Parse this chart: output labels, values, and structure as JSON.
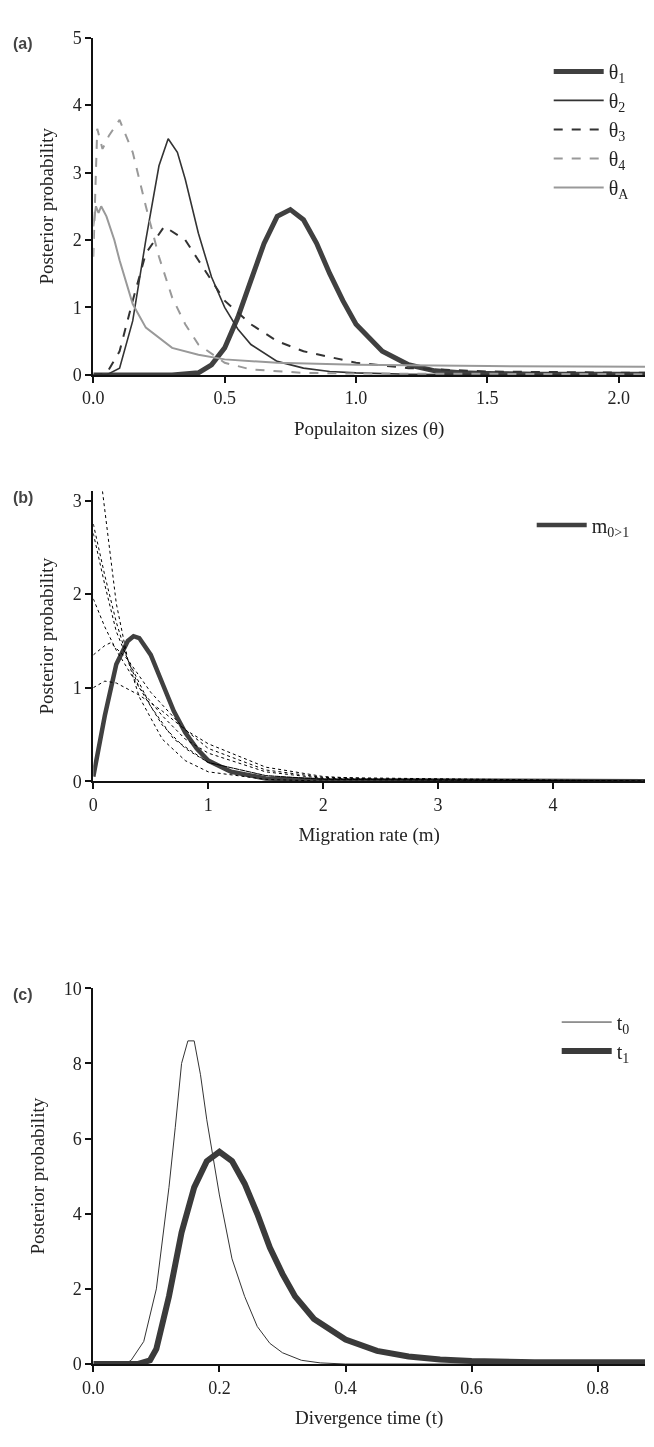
{
  "chart_data": [
    {
      "type": "line",
      "title": "(a)",
      "xlabel": "Populaiton sizes (θ)",
      "ylabel": "Posterior probability",
      "xlim": [
        0,
        2.1
      ],
      "ylim": [
        0,
        5
      ],
      "xticks": [
        {
          "value": 0,
          "label": "0.0"
        },
        0.5,
        {
          "value": 1,
          "label": "1.0"
        },
        1.5,
        {
          "value": 2,
          "label": "2.0"
        }
      ],
      "yticks": [
        0,
        1,
        2,
        3,
        4,
        5
      ],
      "legend": "top right",
      "series": [
        {
          "name": "θ$_{1}$",
          "color": "#404040",
          "line_style": "solid",
          "x": [
            0,
            0.3,
            0.4,
            0.45,
            0.5,
            0.55,
            0.6,
            0.65,
            0.7,
            0.75,
            0.8,
            0.85,
            0.9,
            0.95,
            1.0,
            1.1,
            1.2,
            1.3,
            1.4,
            1.5,
            1.7,
            2.1
          ],
          "values": [
            0,
            0,
            0.03,
            0.15,
            0.4,
            0.85,
            1.4,
            1.95,
            2.35,
            2.45,
            2.3,
            1.95,
            1.5,
            1.1,
            0.75,
            0.35,
            0.15,
            0.06,
            0.03,
            0.02,
            0.01,
            0.01
          ]
        },
        {
          "name": "θ$_{2}$",
          "color": "#333333",
          "line_style": "solid",
          "x": [
            0,
            0.05,
            0.1,
            0.15,
            0.2,
            0.25,
            0.285,
            0.32,
            0.35,
            0.4,
            0.45,
            0.5,
            0.55,
            0.6,
            0.7,
            0.8,
            0.9,
            1.0,
            1.2,
            1.5,
            2.1
          ],
          "values": [
            0,
            0,
            0.1,
            0.8,
            2.0,
            3.1,
            3.5,
            3.3,
            2.9,
            2.1,
            1.45,
            1.0,
            0.68,
            0.45,
            0.2,
            0.1,
            0.05,
            0.03,
            0.01,
            0,
            0
          ]
        },
        {
          "name": "θ$_{3}$",
          "color": "#333333",
          "line_style": "dashed",
          "x": [
            0,
            0.05,
            0.1,
            0.15,
            0.2,
            0.27,
            0.35,
            0.4,
            0.5,
            0.6,
            0.7,
            0.8,
            1.0,
            1.2,
            1.5,
            2.1
          ],
          "values": [
            0,
            0.02,
            0.35,
            1.1,
            1.8,
            2.2,
            2.0,
            1.7,
            1.1,
            0.75,
            0.5,
            0.35,
            0.18,
            0.1,
            0.05,
            0.03
          ]
        },
        {
          "name": "θ$_{4}$",
          "color": "#999999",
          "line_style": "dashed",
          "x": [
            0,
            0.015,
            0.035,
            0.06,
            0.1,
            0.15,
            0.2,
            0.25,
            0.3,
            0.35,
            0.4,
            0.5,
            0.6,
            0.8,
            1.0,
            2.1
          ],
          "values": [
            1.75,
            3.65,
            3.35,
            3.55,
            3.78,
            3.3,
            2.5,
            1.75,
            1.15,
            0.75,
            0.45,
            0.18,
            0.08,
            0.03,
            0.02,
            0.01
          ]
        },
        {
          "name": "θ$_{A}$",
          "color": "#999999",
          "line_style": "solid",
          "x": [
            0,
            0.01,
            0.02,
            0.03,
            0.05,
            0.08,
            0.1,
            0.15,
            0.2,
            0.3,
            0.4,
            0.5,
            0.7,
            1.0,
            1.5,
            2.1
          ],
          "values": [
            2.2,
            2.5,
            2.4,
            2.5,
            2.35,
            2.0,
            1.7,
            1.05,
            0.7,
            0.4,
            0.3,
            0.23,
            0.18,
            0.15,
            0.13,
            0.12
          ]
        }
      ]
    },
    {
      "type": "line",
      "title": "(b)",
      "xlabel": "Migration rate (m)",
      "ylabel": "Posterior probability",
      "xlim": [
        0,
        4.8
      ],
      "ylim": [
        0,
        3.1
      ],
      "xticks": [
        0,
        1,
        2,
        3,
        4
      ],
      "yticks": [
        0,
        1,
        2,
        3
      ],
      "legend": "top right",
      "series": [
        {
          "name": "m$_{0>1}$",
          "color": "#404040",
          "line_style": "solid",
          "x": [
            0,
            0.1,
            0.2,
            0.3,
            0.35,
            0.4,
            0.5,
            0.6,
            0.7,
            0.8,
            0.9,
            1.0,
            1.2,
            1.5,
            2,
            4.8
          ],
          "values": [
            0.05,
            0.7,
            1.25,
            1.5,
            1.55,
            1.53,
            1.35,
            1.05,
            0.75,
            0.52,
            0.35,
            0.22,
            0.1,
            0.03,
            0.01,
            0
          ]
        },
        {
          "color": "#000000",
          "line_style": "dotted",
          "x": [
            0.08,
            0.2,
            0.3,
            0.4,
            0.6,
            0.8,
            1,
            1.5,
            2,
            4.8
          ],
          "values": [
            3.1,
            1.9,
            1.3,
            0.9,
            0.45,
            0.22,
            0.1,
            0.02,
            0,
            0
          ]
        },
        {
          "color": "#000000",
          "line_style": "dotted",
          "x": [
            0,
            0.1,
            0.2,
            0.3,
            0.5,
            0.7,
            1,
            1.5,
            2,
            4.8
          ],
          "values": [
            2.75,
            2.2,
            1.7,
            1.3,
            0.8,
            0.45,
            0.2,
            0.06,
            0.02,
            0
          ]
        },
        {
          "color": "#000000",
          "line_style": "dotted",
          "x": [
            0,
            0.1,
            0.2,
            0.4,
            0.6,
            0.8,
            1,
            1.5,
            2,
            4.8
          ],
          "values": [
            2.65,
            2.1,
            1.6,
            1.0,
            0.6,
            0.35,
            0.2,
            0.06,
            0.02,
            0
          ]
        },
        {
          "color": "#000000",
          "line_style": "dotted",
          "x": [
            0,
            0.1,
            0.2,
            0.4,
            0.6,
            0.8,
            1,
            1.5,
            2,
            4.8
          ],
          "values": [
            1.95,
            1.65,
            1.4,
            1.0,
            0.7,
            0.45,
            0.3,
            0.1,
            0.03,
            0
          ]
        },
        {
          "color": "#000000",
          "line_style": "dotted",
          "x": [
            0,
            0.1,
            0.15,
            0.3,
            0.5,
            0.8,
            1,
            1.5,
            2,
            4.8
          ],
          "values": [
            1.35,
            1.45,
            1.48,
            1.3,
            0.95,
            0.55,
            0.35,
            0.12,
            0.04,
            0
          ]
        },
        {
          "color": "#000000",
          "line_style": "dotted",
          "x": [
            0,
            0.1,
            0.2,
            0.4,
            0.6,
            0.8,
            1,
            1.5,
            2,
            2.5,
            4.8
          ],
          "values": [
            1.0,
            1.07,
            1.05,
            0.92,
            0.75,
            0.55,
            0.4,
            0.15,
            0.05,
            0.02,
            0
          ]
        }
      ]
    },
    {
      "type": "line",
      "title": "(c)",
      "xlabel": "Divergence time (t)",
      "ylabel": "Posterior probability",
      "xlim": [
        0,
        0.875
      ],
      "ylim": [
        0,
        10
      ],
      "xticks": [
        {
          "value": 0,
          "label": "0.0"
        },
        0.2,
        0.4,
        0.6,
        0.8
      ],
      "yticks": [
        0,
        2,
        4,
        6,
        8,
        10
      ],
      "legend": "top right",
      "series": [
        {
          "name": "t$_{0}$",
          "color": "#333333",
          "line_style": "solid",
          "x": [
            0,
            0.05,
            0.06,
            0.08,
            0.1,
            0.12,
            0.13,
            0.14,
            0.15,
            0.16,
            0.17,
            0.18,
            0.2,
            0.22,
            0.24,
            0.26,
            0.28,
            0.3,
            0.33,
            0.36,
            0.4,
            0.875
          ],
          "values": [
            0,
            0,
            0.1,
            0.6,
            2.0,
            4.7,
            6.3,
            8.0,
            8.6,
            8.6,
            7.7,
            6.5,
            4.5,
            2.8,
            1.8,
            1.0,
            0.55,
            0.3,
            0.1,
            0.03,
            0,
            0
          ]
        },
        {
          "name": "t$_{1}$",
          "color": "#3a3a3a",
          "line_style": "solid",
          "x": [
            0,
            0.07,
            0.09,
            0.1,
            0.12,
            0.14,
            0.16,
            0.18,
            0.2,
            0.22,
            0.24,
            0.26,
            0.28,
            0.3,
            0.32,
            0.35,
            0.4,
            0.45,
            0.5,
            0.55,
            0.6,
            0.7,
            0.875
          ],
          "values": [
            0,
            0,
            0.1,
            0.4,
            1.8,
            3.5,
            4.7,
            5.4,
            5.65,
            5.4,
            4.8,
            4.0,
            3.1,
            2.4,
            1.8,
            1.2,
            0.65,
            0.35,
            0.2,
            0.12,
            0.08,
            0.05,
            0.05
          ]
        }
      ]
    }
  ]
}
